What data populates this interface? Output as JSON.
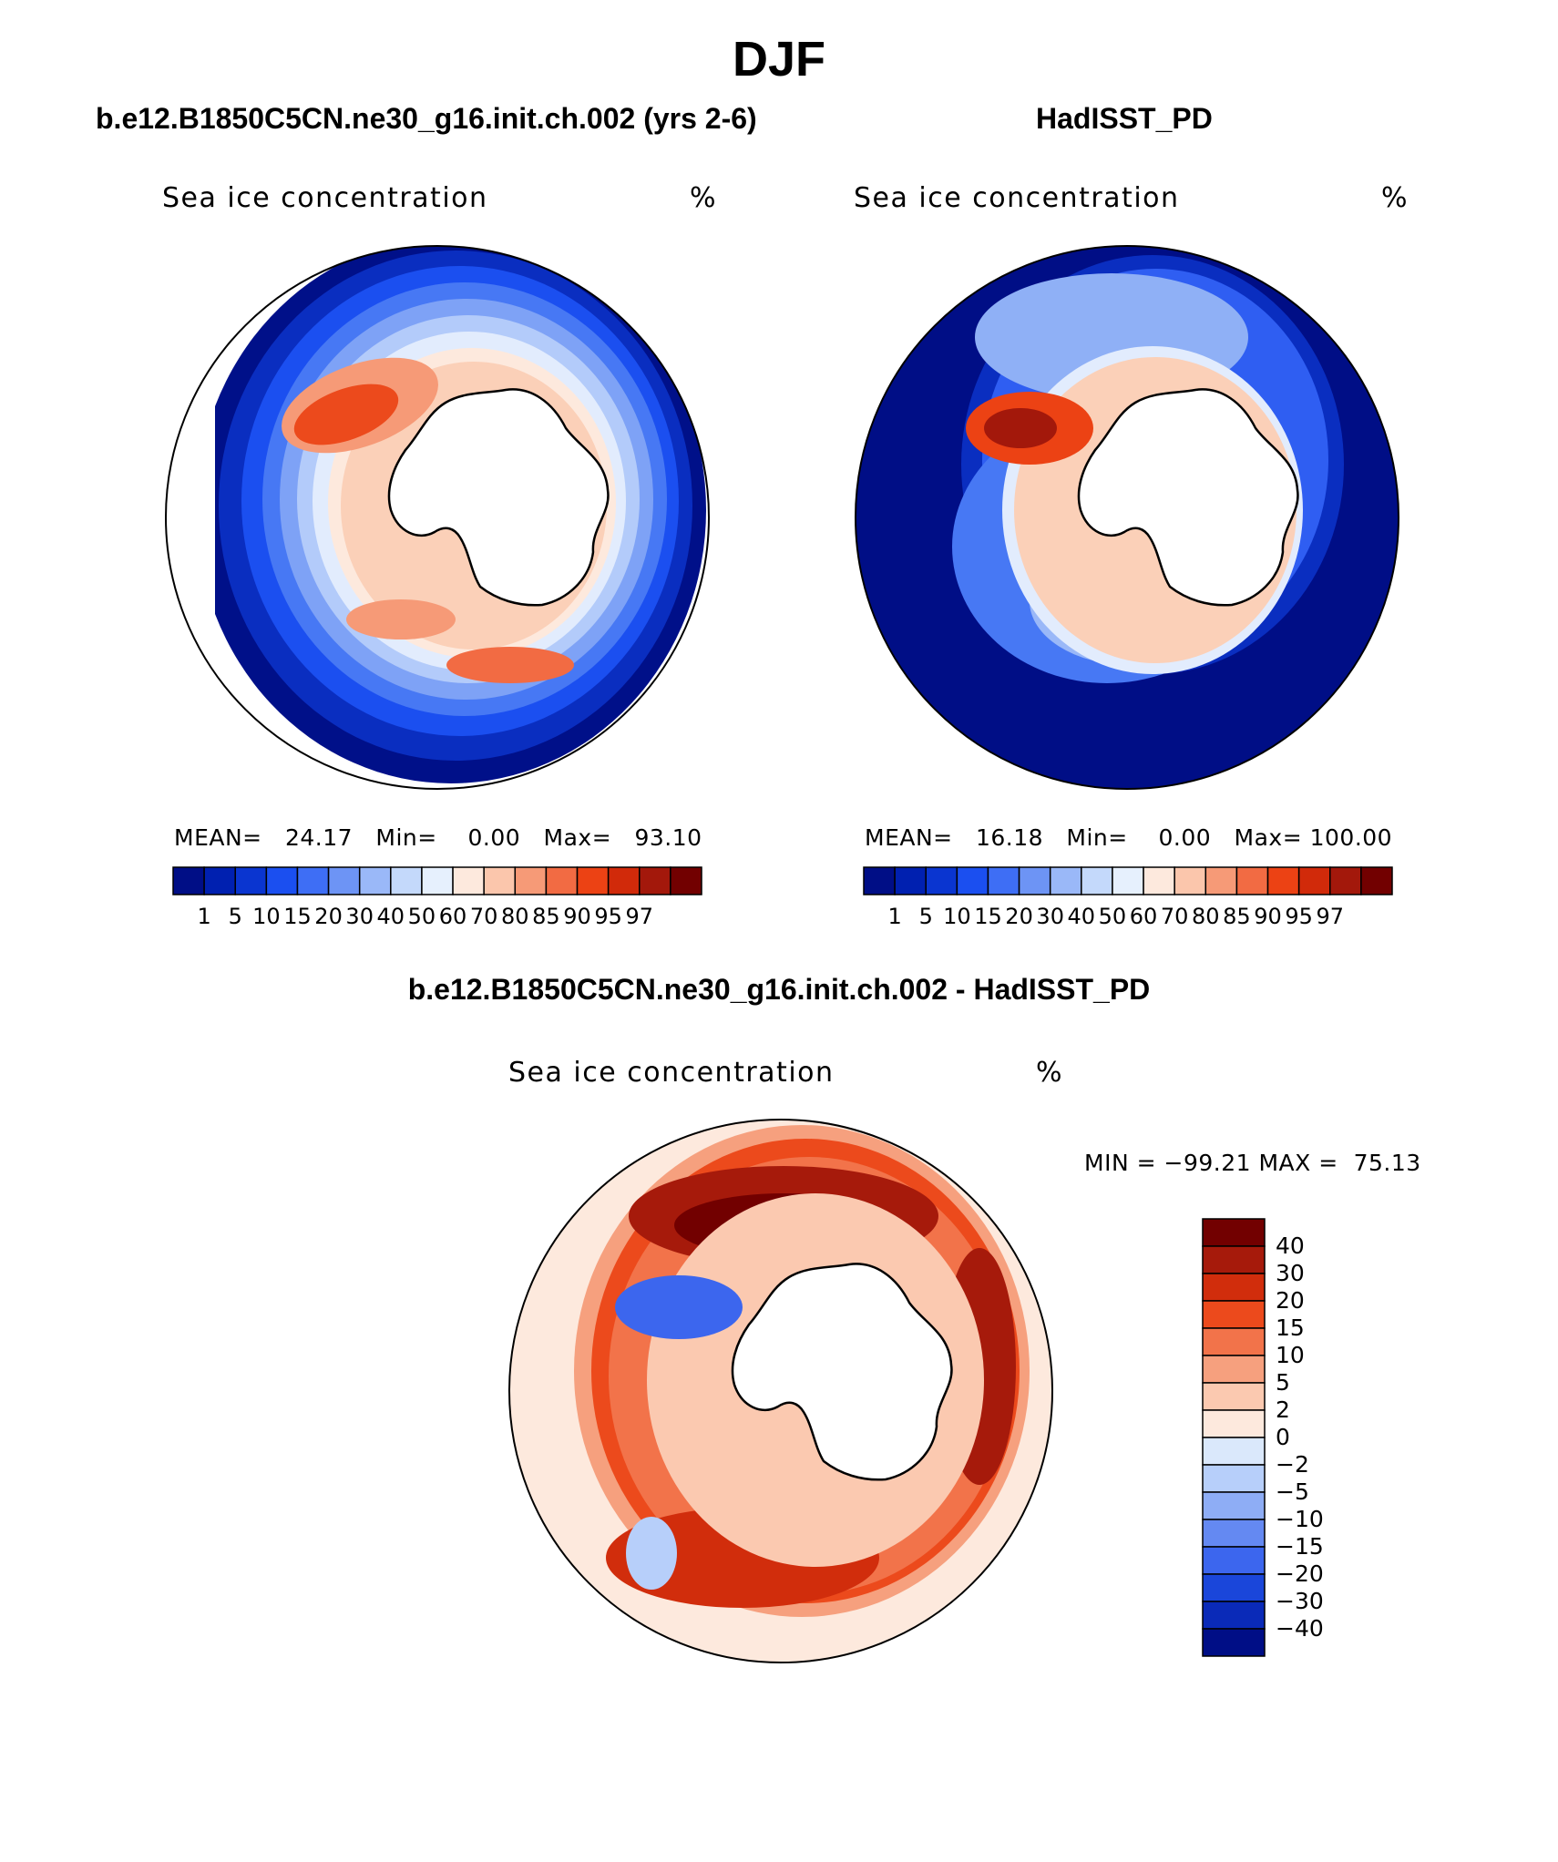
{
  "figure": {
    "title": "DJF"
  },
  "panels": [
    {
      "id": "model",
      "case_title": "b.e12.B1850C5CN.ne30_g16.init.ch.002 (yrs 2-6)",
      "variable_label": "Sea ice concentration",
      "units_label": "%",
      "stats": {
        "mean_label": "MEAN=",
        "mean": "24.17",
        "min_label": "Min=",
        "min": "0.00",
        "max_label": "Max=",
        "max": "93.10"
      }
    },
    {
      "id": "obs",
      "case_title": "HadISST_PD",
      "variable_label": "Sea ice concentration",
      "units_label": "%",
      "stats": {
        "mean_label": "MEAN=",
        "mean": "16.18",
        "min_label": "Min=",
        "min": "0.00",
        "max_label": "Max=",
        "max": "100.00"
      }
    },
    {
      "id": "diff",
      "case_title": "b.e12.B1850C5CN.ne30_g16.init.ch.002 - HadISST_PD",
      "variable_label": "Sea ice concentration",
      "units_label": "%",
      "stats": {
        "min_label": "MIN =",
        "min": "−99.21",
        "max_label": "MAX =",
        "max": "75.13"
      }
    }
  ],
  "colorbar_concentration": {
    "levels": [
      "1",
      "5",
      "10",
      "15",
      "20",
      "30",
      "40",
      "50",
      "60",
      "70",
      "80",
      "85",
      "90",
      "95",
      "97"
    ],
    "colors": [
      "#000e86",
      "#0020b0",
      "#0a35d0",
      "#1b4ff0",
      "#3e6ef5",
      "#6d94f5",
      "#9ab8f8",
      "#c4d9fb",
      "#e6f0fd",
      "#fde9dd",
      "#fbc6ac",
      "#f69a77",
      "#f26b43",
      "#ec4214",
      "#d12a0a",
      "#a3180b",
      "#720000"
    ]
  },
  "colorbar_difference": {
    "levels": [
      "40",
      "30",
      "20",
      "15",
      "10",
      "5",
      "2",
      "0",
      "−2",
      "−5",
      "−10",
      "−15",
      "−20",
      "−30",
      "−40"
    ],
    "colors": [
      "#720000",
      "#a61a0b",
      "#d12d0c",
      "#ec4a1c",
      "#f2734a",
      "#f6a07e",
      "#fbc9b0",
      "#fde9dd",
      "#dae8fb",
      "#b7cffa",
      "#8eadf5",
      "#6489f2",
      "#3c66ee",
      "#1a46da",
      "#0a2ab8",
      "#000e86"
    ]
  },
  "maps": {
    "region": "Southern Hemisphere polar stereographic",
    "season": "DJF"
  }
}
